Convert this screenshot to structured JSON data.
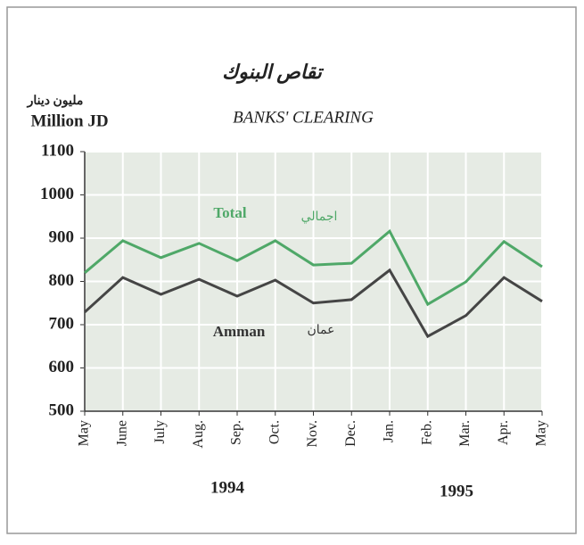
{
  "chart_data": {
    "type": "line",
    "title": "تقاص البنوك",
    "subtitle": "BANKS' CLEARING",
    "y_label_ar": "مليون دينار",
    "y_label": "Million JD",
    "categories": [
      "May",
      "June",
      "July",
      "Aug.",
      "Sep.",
      "Oct.",
      "Nov.",
      "Dec.",
      "Jan.",
      "Feb.",
      "Mar.",
      "Apr.",
      "May"
    ],
    "series": [
      {
        "name": "Total",
        "name_ar": "اجمالي",
        "color": "#4fa868",
        "values": [
          820,
          894,
          855,
          888,
          848,
          894,
          838,
          842,
          916,
          747,
          799,
          892,
          834
        ]
      },
      {
        "name": "Amman",
        "name_ar": "عمان",
        "color": "#454545",
        "values": [
          729,
          809,
          770,
          805,
          766,
          803,
          750,
          758,
          826,
          673,
          721,
          809,
          754
        ]
      }
    ],
    "annotations": [
      "1994",
      "1995"
    ],
    "ylim": [
      500,
      1100
    ],
    "yticks": [
      500,
      600,
      700,
      800,
      900,
      1000,
      1100
    ],
    "grid": true
  }
}
